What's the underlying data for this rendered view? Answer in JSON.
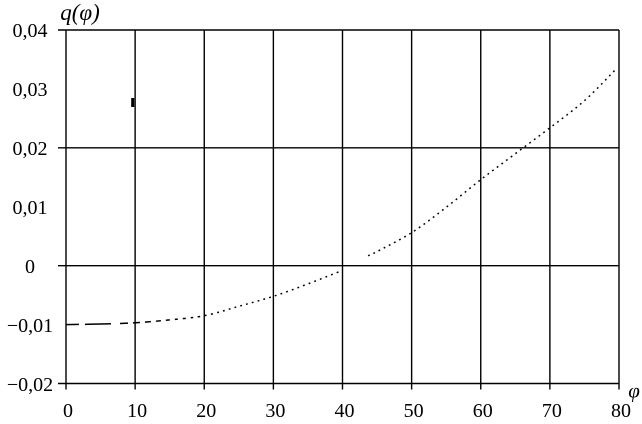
{
  "figure": {
    "background_color": "#ffffff",
    "line_color": "#000000"
  },
  "chart_data": {
    "type": "line",
    "title": "",
    "ylabel": "q(φ)",
    "xlabel": "φ",
    "xlim": [
      0,
      80
    ],
    "ylim": [
      -0.02,
      0.04
    ],
    "grid": true,
    "legend_position": "none",
    "x_ticks": [
      {
        "value": 0,
        "label": "0"
      },
      {
        "value": 10,
        "label": "10"
      },
      {
        "value": 20,
        "label": "20"
      },
      {
        "value": 30,
        "label": "30"
      },
      {
        "value": 40,
        "label": "40"
      },
      {
        "value": 50,
        "label": "50"
      },
      {
        "value": 60,
        "label": "60"
      },
      {
        "value": 70,
        "label": "70"
      },
      {
        "value": 80,
        "label": "80"
      }
    ],
    "y_ticks": [
      {
        "value": 0.04,
        "label": "0,04"
      },
      {
        "value": 0.03,
        "label": "0,03"
      },
      {
        "value": 0.02,
        "label": "0,02"
      },
      {
        "value": 0.01,
        "label": "0,01"
      },
      {
        "value": 0,
        "label": "0"
      },
      {
        "value": -0.01,
        "label": "−0,01"
      },
      {
        "value": -0.02,
        "label": "−0,02"
      }
    ],
    "x_gridlines": [
      0,
      10,
      20,
      30,
      40,
      50,
      60,
      70,
      80
    ],
    "y_gridlines": [
      0.04,
      0.02,
      0,
      -0.02
    ],
    "series": [
      {
        "name": "q(φ)",
        "color": "#000000",
        "line_style": "dash-dot",
        "segments": [
          [
            [
              0,
              -0.01
            ],
            [
              5,
              -0.0099
            ],
            [
              10,
              -0.0097
            ],
            [
              15,
              -0.0092
            ],
            [
              20,
              -0.0085
            ],
            [
              25,
              -0.0069
            ],
            [
              30,
              -0.0052
            ],
            [
              35,
              -0.0031
            ],
            [
              40,
              -0.0008
            ]
          ],
          [
            [
              43.7,
              0.0017
            ],
            [
              45,
              0.0024
            ],
            [
              50,
              0.0056
            ],
            [
              55,
              0.0099
            ],
            [
              60,
              0.0146
            ],
            [
              65,
              0.019
            ],
            [
              70,
              0.0234
            ],
            [
              75,
              0.028
            ],
            [
              79.6,
              0.0334
            ]
          ]
        ]
      }
    ]
  }
}
